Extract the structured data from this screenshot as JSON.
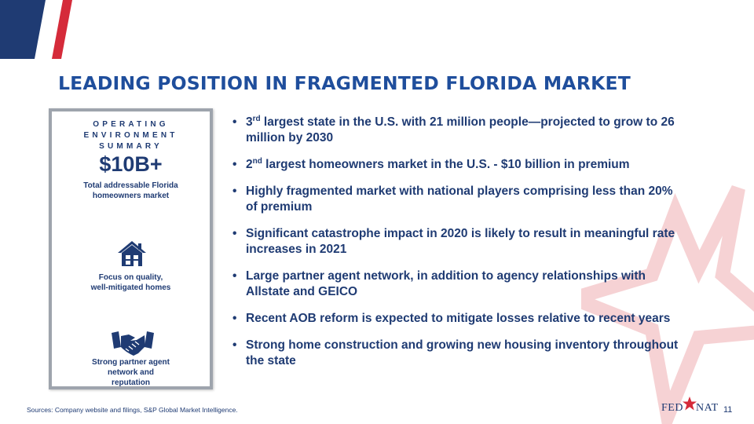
{
  "slide": {
    "title": "LEADING POSITION IN FRAGMENTED FLORIDA MARKET",
    "page_number": "11",
    "source_note": "Sources: Company website and filings, S&P Global Market Intelligence."
  },
  "panel": {
    "heading": "OPERATING ENVIRONMENT SUMMARY",
    "big_stat": "$10B+",
    "stat_description_line1": "Total addressable Florida",
    "stat_description_line2": "homeowners market",
    "quality_label_line1": "Focus on quality,",
    "quality_label_line2": "well-mitigated homes",
    "partner_label_line1": "Strong partner agent",
    "partner_label_line2": "network and",
    "partner_label_line3": "reputation",
    "icons": [
      "house-icon",
      "handshake-icon"
    ]
  },
  "bullets": [
    {
      "pre": "3",
      "sup": "rd",
      "text": " largest state in the U.S. with 21 million people—projected to grow to 26 million by 2030"
    },
    {
      "pre": "2",
      "sup": "nd",
      "text": " largest homeowners market in the U.S. - $10 billion in premium"
    },
    {
      "pre": "",
      "sup": "",
      "text": "Highly fragmented market with national players comprising less than 20% of premium"
    },
    {
      "pre": "",
      "sup": "",
      "text": "Significant catastrophe impact in 2020 is likely to result in meaningful rate increases in 2021"
    },
    {
      "pre": "",
      "sup": "",
      "text": "Large partner agent network, in addition to agency relationships with Allstate and GEICO"
    },
    {
      "pre": "",
      "sup": "",
      "text": "Recent AOB reform is expected to mitigate losses relative to recent years"
    },
    {
      "pre": "",
      "sup": "",
      "text": "Strong home construction and growing new housing inventory throughout the state"
    }
  ],
  "logo": {
    "left": "FED",
    "right": "NAT"
  },
  "colors": {
    "primary_blue": "#1f3b73",
    "title_blue": "#1f4e9c",
    "brand_red": "#d52b3a",
    "panel_border": "#9ea4ad"
  }
}
